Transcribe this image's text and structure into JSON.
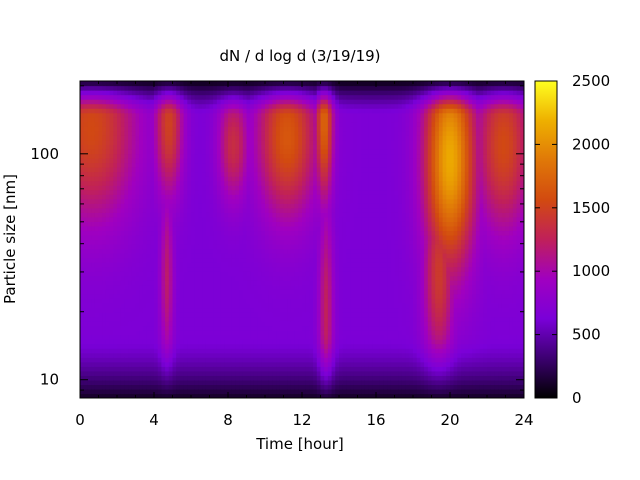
{
  "chart_data": {
    "type": "heatmap",
    "title": "dN / d log d (3/19/19)",
    "xlabel": "Time [hour]",
    "ylabel": "Particle size [nm]",
    "x_range": [
      0,
      24
    ],
    "x_ticks": [
      0,
      4,
      8,
      12,
      16,
      20,
      24
    ],
    "x_tick_labels": [
      "0",
      "4",
      "8",
      "12",
      "16",
      "20",
      "24"
    ],
    "y_scale": "log",
    "y_range": [
      8.3,
      210
    ],
    "y_ticks": [
      10,
      100
    ],
    "y_tick_labels": [
      "10",
      "100"
    ],
    "colorbar": {
      "range": [
        0,
        2500
      ],
      "ticks": [
        0,
        500,
        1000,
        1500,
        2000,
        2500
      ],
      "tick_labels": [
        "0",
        "500",
        "1000",
        "1500",
        "2000",
        "2500"
      ],
      "palette": [
        "#000000",
        "#3c0070",
        "#7a00d8",
        "#a000c0",
        "#c0205a",
        "#d24a10",
        "#e07808",
        "#eeb000",
        "#ffff20"
      ]
    },
    "background_level": 650,
    "features": [
      {
        "t": 0.6,
        "d": 130,
        "peak": 1550,
        "width_h": 1.8,
        "width_logd": 0.3
      },
      {
        "t": 4.8,
        "d": 135,
        "peak": 1500,
        "width_h": 0.55,
        "width_logd": 0.23
      },
      {
        "t": 4.7,
        "d": 28,
        "peak": 1200,
        "width_h": 0.25,
        "width_logd": 0.28
      },
      {
        "t": 8.3,
        "d": 110,
        "peak": 1350,
        "width_h": 0.6,
        "width_logd": 0.18
      },
      {
        "t": 11.2,
        "d": 120,
        "peak": 1650,
        "width_h": 1.2,
        "width_logd": 0.26
      },
      {
        "t": 13.2,
        "d": 140,
        "peak": 1750,
        "width_h": 0.35,
        "width_logd": 0.25
      },
      {
        "t": 13.3,
        "d": 20,
        "peak": 1250,
        "width_h": 0.28,
        "width_logd": 0.35
      },
      {
        "t": 20.0,
        "d": 95,
        "peak": 2150,
        "width_h": 1.0,
        "width_logd": 0.35
      },
      {
        "t": 19.4,
        "d": 30,
        "peak": 1450,
        "width_h": 0.6,
        "width_logd": 0.3
      },
      {
        "t": 22.9,
        "d": 110,
        "peak": 1550,
        "width_h": 1.1,
        "width_logd": 0.28
      }
    ]
  }
}
